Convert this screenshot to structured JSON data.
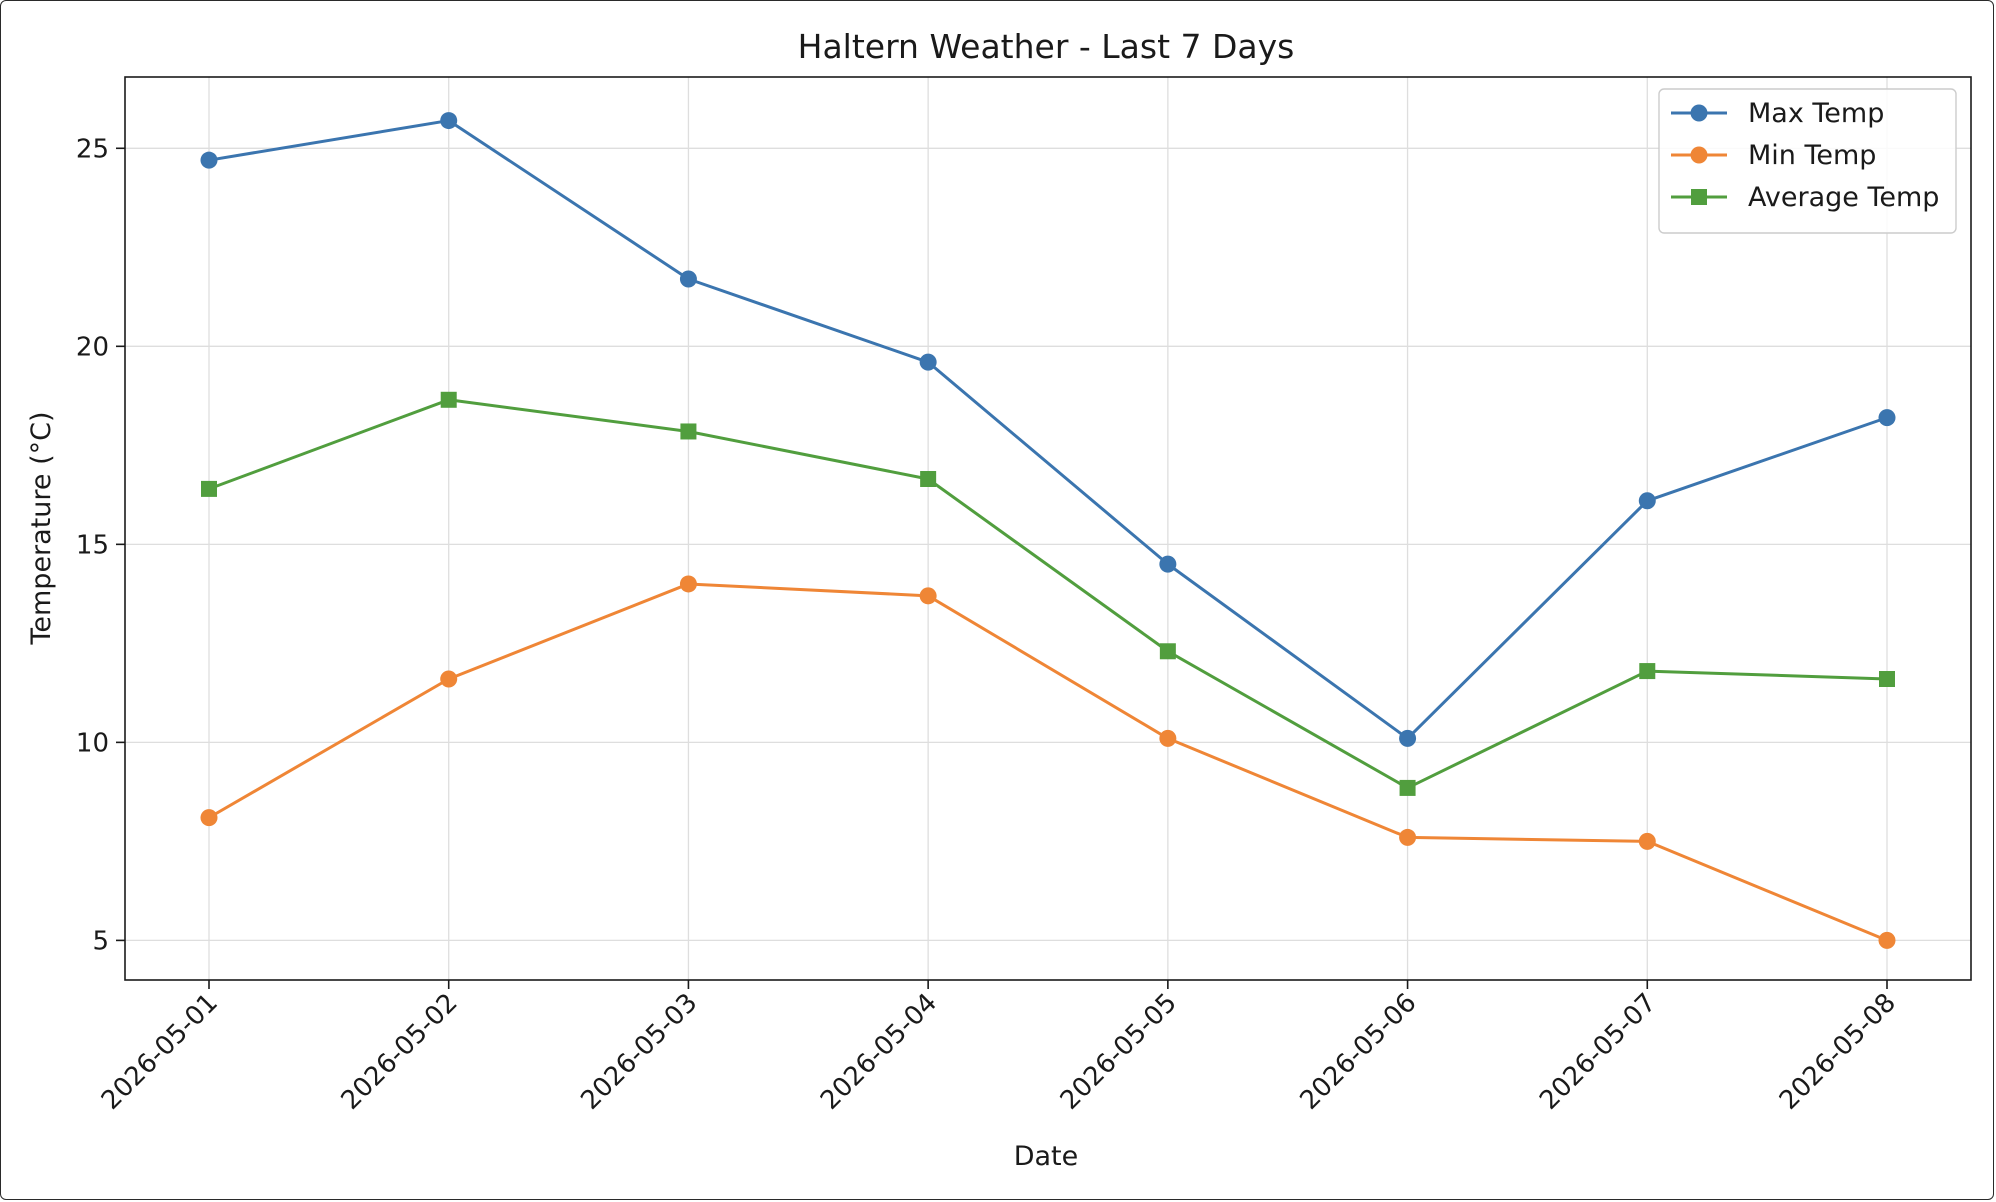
{
  "chart_data": {
    "type": "line",
    "title": "Haltern Weather - Last 7 Days",
    "xlabel": "Date",
    "ylabel": "Temperature (°C)",
    "categories": [
      "2026-05-01",
      "2026-05-02",
      "2026-05-03",
      "2026-05-04",
      "2026-05-05",
      "2026-05-06",
      "2026-05-07",
      "2026-05-08"
    ],
    "ylim": [
      4,
      26.8
    ],
    "yticks": [
      5,
      10,
      15,
      20,
      25
    ],
    "grid": true,
    "legend_position": "top-right",
    "series": [
      {
        "name": "Max Temp",
        "color": "#3b75af",
        "marker": "circle",
        "values": [
          24.7,
          25.7,
          21.7,
          19.6,
          14.5,
          10.1,
          16.1,
          18.2
        ]
      },
      {
        "name": "Min Temp",
        "color": "#ef8636",
        "marker": "circle",
        "values": [
          8.1,
          11.6,
          14.0,
          13.7,
          10.1,
          7.6,
          7.5,
          5.0
        ]
      },
      {
        "name": "Average Temp",
        "color": "#519e3e",
        "marker": "square",
        "values": [
          16.4,
          18.65,
          17.85,
          16.65,
          12.3,
          8.85,
          11.8,
          11.6
        ]
      }
    ]
  }
}
